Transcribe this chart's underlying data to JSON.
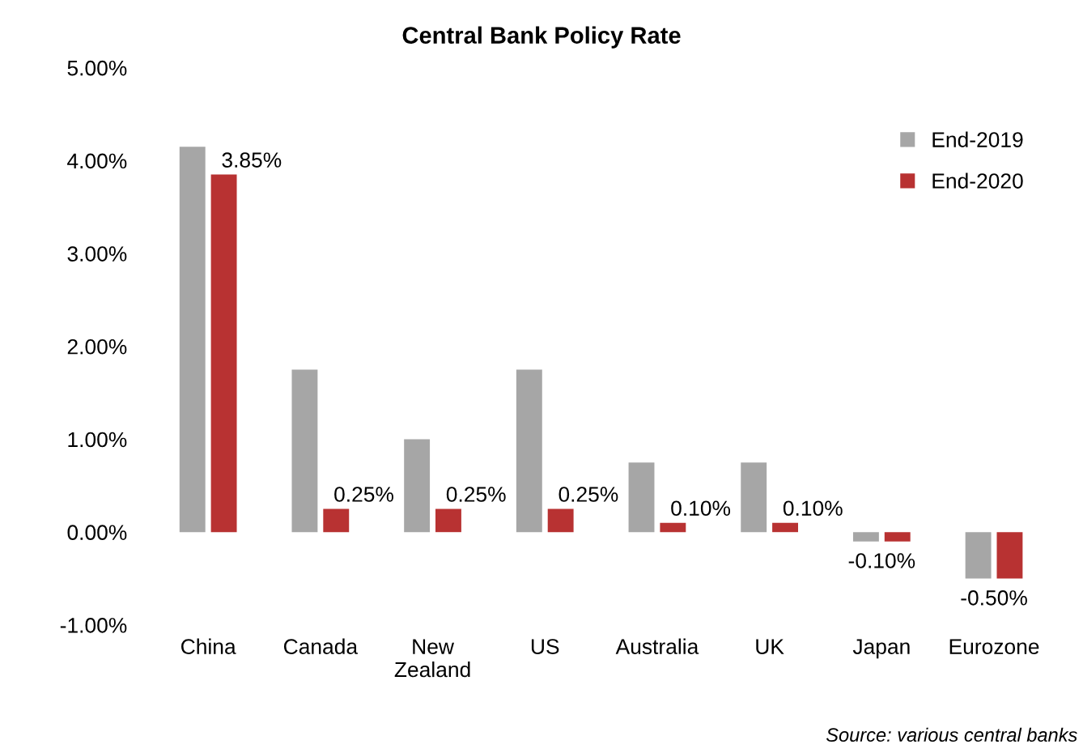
{
  "chart_data": {
    "type": "bar",
    "title": "Central Bank Policy Rate",
    "categories": [
      "China",
      "Canada",
      "New\nZealand",
      "US",
      "Australia",
      "UK",
      "Japan",
      "Eurozone"
    ],
    "series": [
      {
        "name": "End-2019",
        "color": "#a6a6a6",
        "values": [
          4.15,
          1.75,
          1.0,
          1.75,
          0.75,
          0.75,
          -0.1,
          -0.5
        ]
      },
      {
        "name": "End-2020",
        "color": "#b83232",
        "values": [
          3.85,
          0.25,
          0.25,
          0.25,
          0.1,
          0.1,
          -0.1,
          -0.5
        ],
        "value_labels": [
          "3.85%",
          "0.25%",
          "0.25%",
          "0.25%",
          "0.10%",
          "0.10%",
          "-0.10%",
          "-0.50%"
        ]
      }
    ],
    "ylim": [
      -1,
      5
    ],
    "yticks": [
      {
        "value": -1,
        "label": "-1.00%"
      },
      {
        "value": 0,
        "label": "0.00%"
      },
      {
        "value": 1,
        "label": "1.00%"
      },
      {
        "value": 2,
        "label": "2.00%"
      },
      {
        "value": 3,
        "label": "3.00%"
      },
      {
        "value": 4,
        "label": "4.00%"
      },
      {
        "value": 5,
        "label": "5.00%"
      }
    ],
    "legend": "top right",
    "grid": false,
    "annotations": [
      "Source: various central banks"
    ]
  }
}
